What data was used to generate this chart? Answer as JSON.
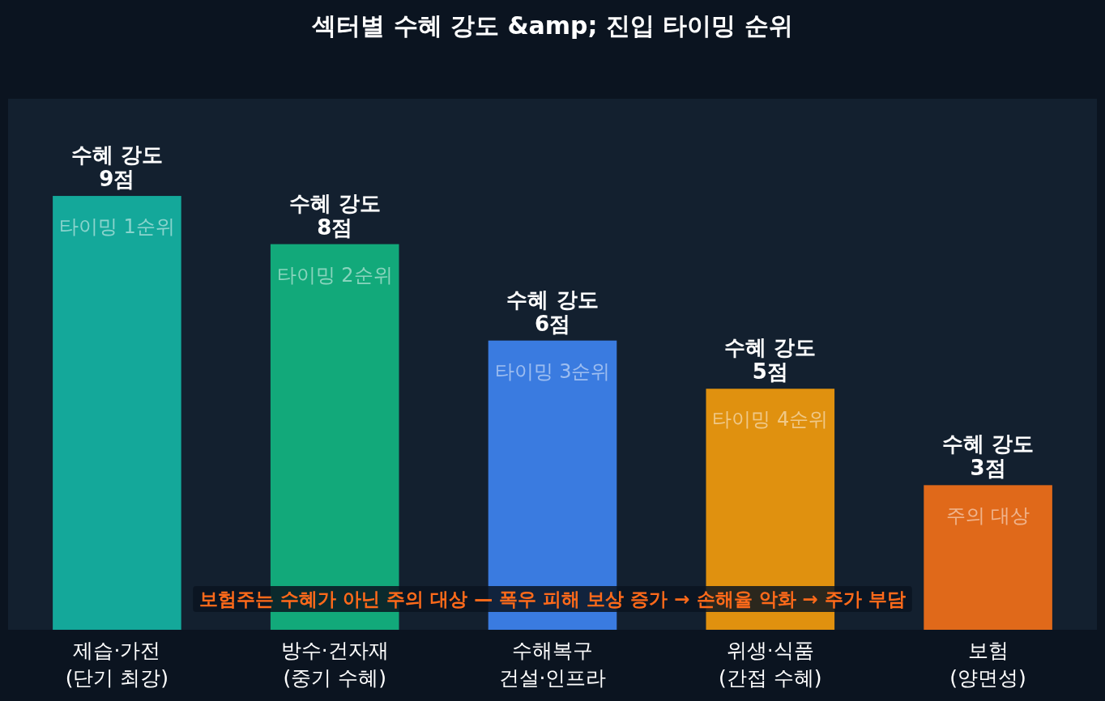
{
  "chart_data": {
    "type": "bar",
    "title": "섹터별 수혜 강도 &amp; 진입 타이밍 순위",
    "categories": [
      "제습·가전\n(단기 최강)",
      "방수·건자재\n(중기 수혜)",
      "수해복구\n건설·인프라",
      "위생·식품\n(간접 수혜)",
      "보험\n(양면성)"
    ],
    "values": [
      9,
      8,
      6,
      5,
      3
    ],
    "colors": [
      "#14a89a",
      "#12a97a",
      "#3a7be0",
      "#e0910f",
      "#e0691a"
    ],
    "value_labels": [
      "수혜 강도\n9점",
      "수혜 강도\n8점",
      "수혜 강도\n6점",
      "수혜 강도\n5점",
      "수혜 강도\n3점"
    ],
    "annotations": [
      {
        "text": "타이밍 1순위",
        "x": "제습·가전\n(단기 최강)",
        "y": 9
      },
      {
        "text": "타이밍 2순위",
        "x": "방수·건자재\n(중기 수혜)",
        "y": 8
      },
      {
        "text": "타이밍 3순위",
        "x": "수해복구\n건설·인프라",
        "y": 6
      },
      {
        "text": "타이밍 4순위",
        "x": "위생·식품\n(간접 수혜)",
        "y": 5
      },
      {
        "text": "주의 대상",
        "x": "보험\n(양면성)",
        "y": 3
      },
      "보험주는 수혜가 아닌 주의 대상 — 폭우 피해 보상 증가 → 손해율 악화 → 주가 부담"
    ]
  }
}
